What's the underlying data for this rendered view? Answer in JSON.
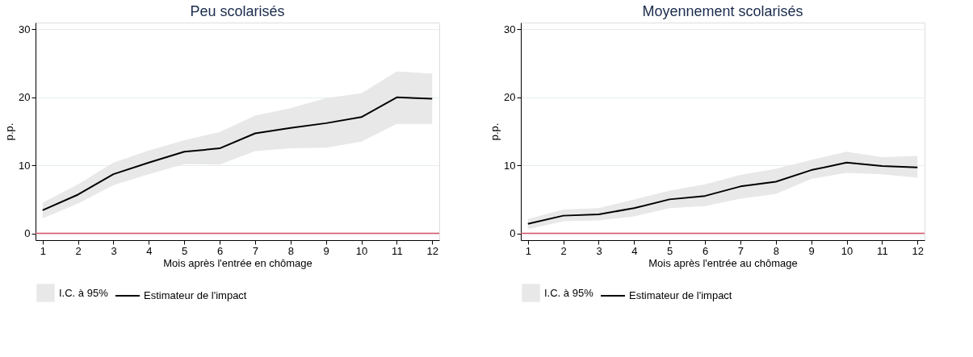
{
  "chart_data": [
    {
      "type": "line",
      "title": "Peu scolarisés",
      "xlabel": "Mois après l'entrée en chômage",
      "ylabel": "p.p.",
      "x": [
        1,
        2,
        3,
        4,
        5,
        6,
        7,
        8,
        9,
        10,
        11,
        12
      ],
      "xlim": [
        0.8,
        12.2
      ],
      "xticks": [
        1,
        2,
        3,
        4,
        5,
        6,
        7,
        8,
        9,
        10,
        11,
        12
      ],
      "ylim": [
        -1,
        31
      ],
      "yticks": [
        0,
        10,
        20,
        30
      ],
      "grid": "y",
      "legend": "bottom",
      "series": [
        {
          "name": "I.C. à 95%",
          "type": "area",
          "color": "#e8e8e8",
          "values": [
            null,
            null,
            null,
            null,
            null,
            null,
            null,
            null,
            null,
            null,
            null,
            null
          ],
          "lower": [
            2.2,
            4.4,
            7.1,
            8.7,
            10.2,
            10.1,
            12.1,
            12.5,
            12.6,
            13.5,
            16.1,
            16.1
          ],
          "upper": [
            4.5,
            7.2,
            10.4,
            12.2,
            13.7,
            14.9,
            17.3,
            18.4,
            19.9,
            20.6,
            23.8,
            23.5
          ]
        },
        {
          "name": "Estimateur de l'impact",
          "type": "line",
          "color": "#000000",
          "values": [
            3.4,
            5.7,
            8.7,
            10.4,
            12.0,
            12.5,
            14.7,
            15.5,
            16.2,
            17.1,
            20.0,
            19.8
          ]
        }
      ],
      "ref_lines": [
        {
          "axis": "y",
          "value": 0,
          "color": "#d6536d"
        }
      ]
    },
    {
      "type": "line",
      "title": "Moyennement scolarisés",
      "xlabel": "Mois après l'entrée au chômage",
      "ylabel": "p.p.",
      "x": [
        1,
        2,
        3,
        4,
        5,
        6,
        7,
        8,
        9,
        10,
        11,
        12
      ],
      "xlim": [
        0.8,
        12.2
      ],
      "xticks": [
        1,
        2,
        3,
        4,
        5,
        6,
        7,
        8,
        9,
        10,
        11,
        12
      ],
      "ylim": [
        -1,
        31
      ],
      "yticks": [
        0,
        10,
        20,
        30
      ],
      "grid": "y",
      "legend": "bottom",
      "series": [
        {
          "name": "I.C. à 95%",
          "type": "area",
          "color": "#e8e8e8",
          "values": [
            null,
            null,
            null,
            null,
            null,
            null,
            null,
            null,
            null,
            null,
            null,
            null
          ],
          "lower": [
            0.6,
            1.8,
            1.9,
            2.5,
            3.7,
            4.0,
            5.1,
            5.8,
            8.0,
            8.9,
            8.7,
            8.2
          ],
          "upper": [
            2.1,
            3.5,
            3.7,
            5.0,
            6.3,
            7.2,
            8.6,
            9.5,
            10.8,
            12.0,
            11.2,
            11.4
          ]
        },
        {
          "name": "Estimateur de l'impact",
          "type": "line",
          "color": "#000000",
          "values": [
            1.4,
            2.6,
            2.8,
            3.7,
            5.0,
            5.5,
            6.9,
            7.6,
            9.3,
            10.4,
            9.9,
            9.7
          ]
        }
      ],
      "ref_lines": [
        {
          "axis": "y",
          "value": 0,
          "color": "#d6536d"
        }
      ]
    }
  ]
}
